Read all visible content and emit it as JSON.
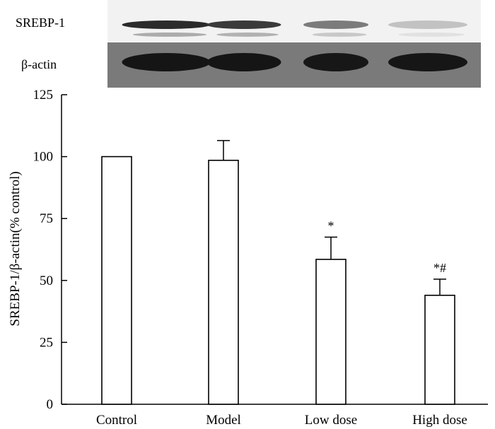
{
  "blot": {
    "rows": [
      {
        "label": "SREBP-1",
        "intensities": [
          0.92,
          0.85,
          0.55,
          0.22
        ],
        "band_color": "#1a1a1a"
      },
      {
        "label": "β-actin",
        "intensities": [
          0.95,
          0.95,
          0.93,
          0.94
        ],
        "band_color": "#101010"
      }
    ],
    "panel_color": "#f2f2f2",
    "background_color": "#7a7a7a"
  },
  "chart_data": {
    "type": "bar",
    "categories": [
      "Control",
      "Model",
      "Low dose",
      "High dose"
    ],
    "values": [
      100,
      98.5,
      58.5,
      44
    ],
    "errors": [
      0,
      8,
      9,
      6.5
    ],
    "annotations": [
      "",
      "",
      "*",
      "*#"
    ],
    "ylabel": "SREBP-1/β-actin(% control)",
    "xlabel": "",
    "ylim": [
      0,
      125
    ],
    "yticks": [
      0,
      25,
      50,
      75,
      100,
      125
    ],
    "bar_fill": "#ffffff",
    "bar_stroke": "#000000"
  }
}
